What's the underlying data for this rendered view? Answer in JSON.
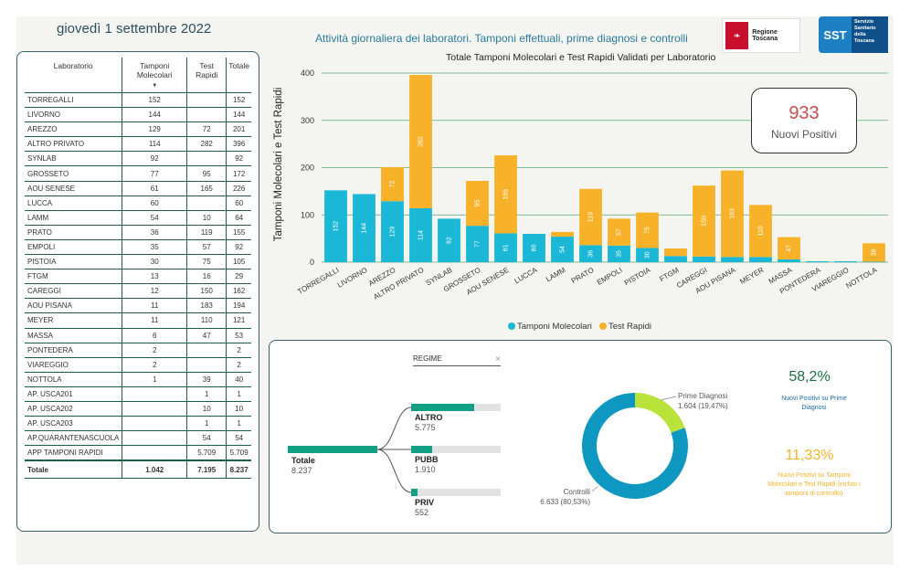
{
  "header": {
    "date": "giovedì 1 settembre 2022",
    "title": "Attività giornaliera dei laboratori. Tamponi effettuali, prime diagnosi e controlli",
    "logo_rt": "Regione Toscana",
    "logo_sst_short": "SST",
    "logo_sst": "Servizio Sanitario della Toscana"
  },
  "table": {
    "headers": [
      "Laboratorio",
      "Tamponi Molecolari",
      "Test Rapidi",
      "Totale"
    ],
    "rows": [
      [
        "TORREGALLI",
        "152",
        "",
        "152"
      ],
      [
        "LIVORNO",
        "144",
        "",
        "144"
      ],
      [
        "AREZZO",
        "129",
        "72",
        "201"
      ],
      [
        "ALTRO PRIVATO",
        "114",
        "282",
        "396"
      ],
      [
        "SYNLAB",
        "92",
        "",
        "92"
      ],
      [
        "GROSSETO",
        "77",
        "95",
        "172"
      ],
      [
        "AOU SENESE",
        "61",
        "165",
        "226"
      ],
      [
        "LUCCA",
        "60",
        "",
        "60"
      ],
      [
        "LAMM",
        "54",
        "10",
        "64"
      ],
      [
        "PRATO",
        "36",
        "119",
        "155"
      ],
      [
        "EMPOLI",
        "35",
        "57",
        "92"
      ],
      [
        "PISTOIA",
        "30",
        "75",
        "105"
      ],
      [
        "FTGM",
        "13",
        "16",
        "29"
      ],
      [
        "CAREGGI",
        "12",
        "150",
        "162"
      ],
      [
        "AOU PISANA",
        "11",
        "183",
        "194"
      ],
      [
        "MEYER",
        "11",
        "110",
        "121"
      ],
      [
        "MASSA",
        "6",
        "47",
        "53"
      ],
      [
        "PONTEDERA",
        "2",
        "",
        "2"
      ],
      [
        "VIAREGGIO",
        "2",
        "",
        "2"
      ],
      [
        "NOTTOLA",
        "1",
        "39",
        "40"
      ],
      [
        "AP. USCA201",
        "",
        "1",
        "1"
      ],
      [
        "AP. USCA202",
        "",
        "10",
        "10"
      ],
      [
        "AP. USCA203",
        "",
        "1",
        "1"
      ],
      [
        "AP.QUARANTENASCUOLA",
        "",
        "54",
        "54"
      ],
      [
        "APP TAMPONI RAPIDI",
        "",
        "5.709",
        "5.709"
      ]
    ],
    "total": [
      "Totale",
      "1.042",
      "7.195",
      "8.237"
    ]
  },
  "chart_data": [
    {
      "type": "bar",
      "stacked": true,
      "title": "Totale Tamponi Molecolari e Test Rapidi Validati per Laboratorio",
      "ylabel": "Tamponi Molecolari e Test Rapidi",
      "xlabel": "",
      "ylim": [
        0,
        400
      ],
      "yticks": [
        0,
        100,
        200,
        300,
        400
      ],
      "grid": true,
      "legend": "bottom",
      "categories": [
        "TORREGALLI",
        "LIVORNO",
        "AREZZO",
        "ALTRO PRIVATO",
        "SYNLAB",
        "GROSSETO",
        "AOU SENESE",
        "LUCCA",
        "LAMM",
        "PRATO",
        "EMPOLI",
        "PISTOIA",
        "FTGM",
        "CAREGGI",
        "AOU PISANA",
        "MEYER",
        "MASSA",
        "PONTEDERA",
        "VIAREGGIO",
        "NOTTOLA"
      ],
      "series": [
        {
          "name": "Tamponi Molecolari",
          "color": "#1ab8d6",
          "values": [
            152,
            144,
            129,
            114,
            92,
            77,
            61,
            60,
            54,
            36,
            35,
            30,
            13,
            12,
            11,
            11,
            6,
            2,
            2,
            1
          ],
          "labels": [
            "152",
            "144",
            "129",
            "114",
            "92",
            "77",
            "61",
            "60",
            "54",
            "36",
            "35",
            "30",
            "",
            "",
            "",
            "",
            "",
            "",
            "",
            ""
          ]
        },
        {
          "name": "Test Rapidi",
          "color": "#f7b22a",
          "values": [
            0,
            0,
            72,
            282,
            0,
            95,
            165,
            0,
            10,
            119,
            57,
            75,
            16,
            150,
            183,
            110,
            47,
            0,
            0,
            39
          ],
          "labels": [
            "",
            "",
            "72",
            "282",
            "",
            "95",
            "165",
            "",
            "",
            "119",
            "57",
            "75",
            "",
            "150",
            "183",
            "110",
            "47",
            "",
            "",
            "39"
          ]
        }
      ]
    },
    {
      "type": "pie",
      "donut": true,
      "categories": [
        "Prime Diagnosi",
        "Controlli"
      ],
      "values": [
        1604,
        6633
      ],
      "labels": [
        "1.604 (19,47%)",
        "6.633 (80,53%)"
      ],
      "colors": [
        "#b9e23a",
        "#0e97c0"
      ]
    }
  ],
  "kpi": {
    "value": "933",
    "label": "Nuovi Positivi"
  },
  "tree": {
    "filter_label": "REGIME",
    "close": "×",
    "total_label": "Totale",
    "total_value": "8.237",
    "nodes": [
      {
        "label": "ALTRO",
        "value": "5.775",
        "fraction": 0.7
      },
      {
        "label": "PUBB",
        "value": "1.910",
        "fraction": 0.23
      },
      {
        "label": "PRIV",
        "value": "552",
        "fraction": 0.07
      }
    ]
  },
  "stats": {
    "pct1": "58,2%",
    "pct1_label": "Nuovi Positivi su Prime Diagnosi",
    "pct2": "11,33%",
    "pct2_label": "Nuovi Positivi su Tamponi Molecolari e Test Rapidi (inclusi i tamponi di controllo)"
  }
}
